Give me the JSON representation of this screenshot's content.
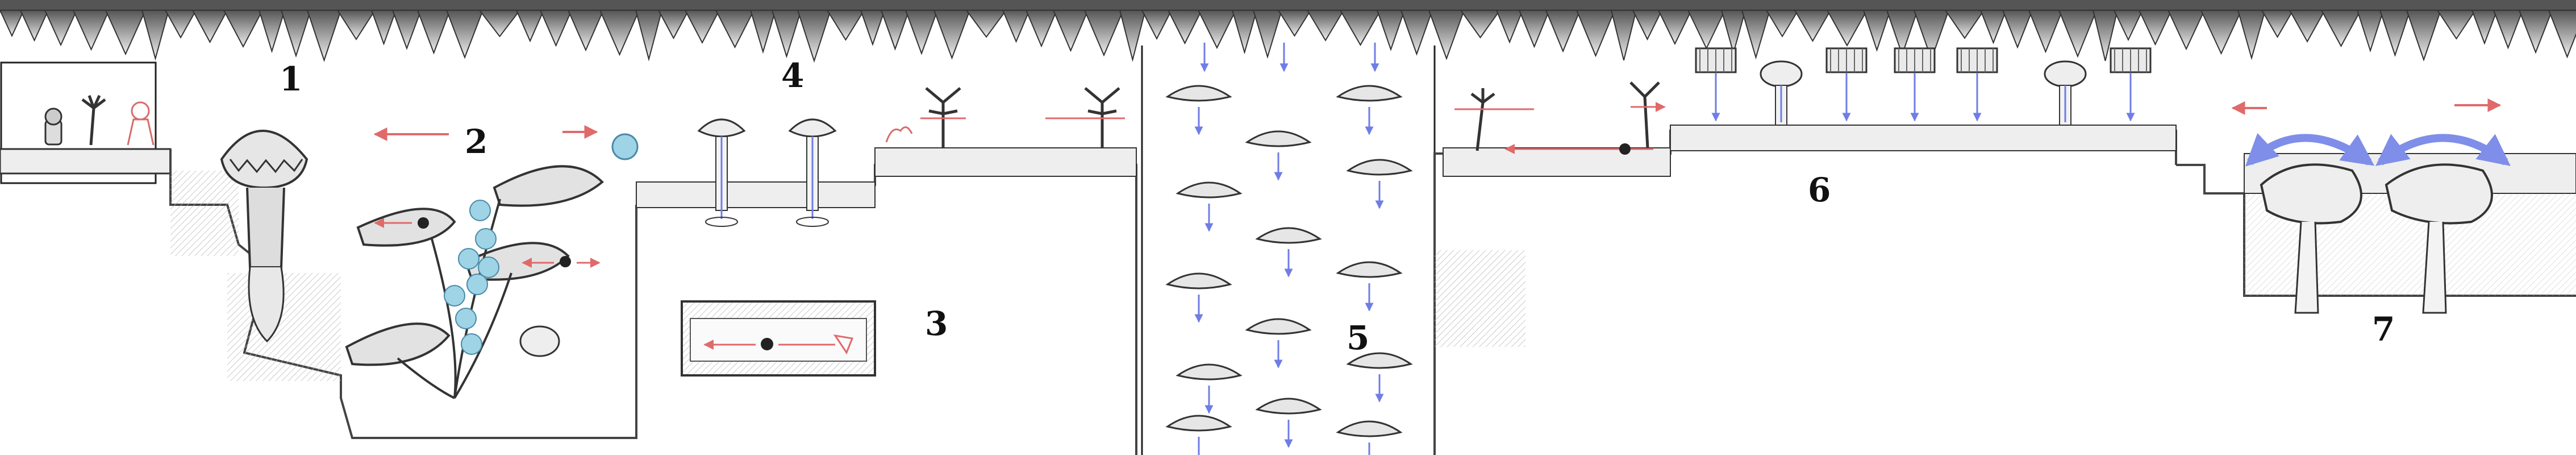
{
  "section_labels": {
    "s1": "1",
    "s2": "2",
    "s3": "3",
    "s4": "4",
    "s5": "5",
    "s6": "6",
    "s7": "7"
  },
  "colors": {
    "ink": "#2a2a2a",
    "shade": "#9a9a9a",
    "stone": "#d8d8d8",
    "movement_arrow_red": "#e06a6a",
    "falling_arrow_blue": "#6f7de6",
    "bounce_arrow_blue": "#7f8ee8",
    "bubble_blue": "#9fd3e6",
    "character_outline": "#d86b6b"
  },
  "icons": [
    "stalactite-ceiling",
    "sprout-creature",
    "venus-flytrap-plant",
    "floating-leaf-platform",
    "air-bubble",
    "spider-enemy",
    "spore-geyser-plant",
    "falling-leaf",
    "mushroom-pillar",
    "hanging-cage-platform",
    "bounce-mushroom"
  ]
}
